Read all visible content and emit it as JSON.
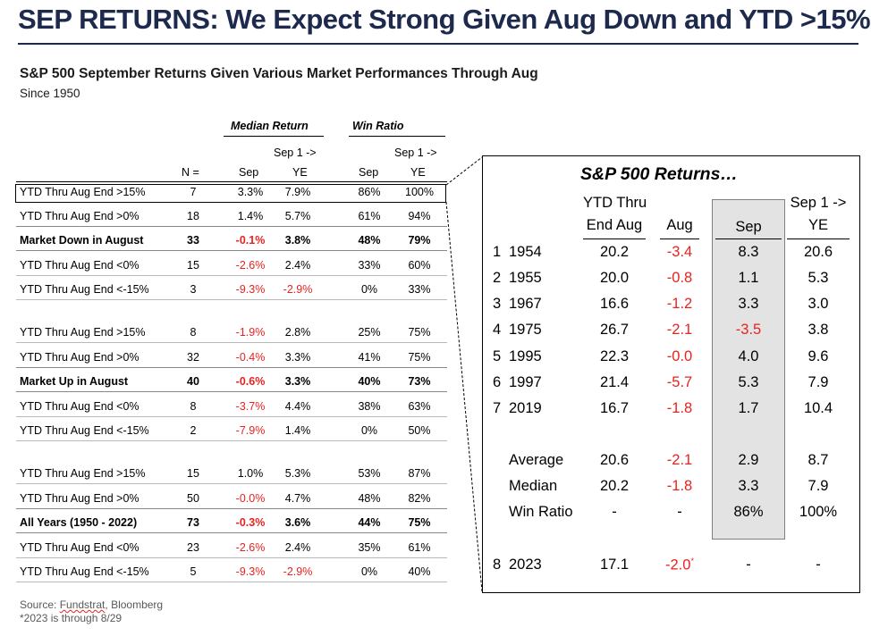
{
  "title": "SEP RETURNS: We Expect Strong Given Aug Down and YTD >15%",
  "subtitle": "S&P 500 September Returns Given Various Market Performances Through Aug",
  "since": "Since 1950",
  "left_table": {
    "group_headers": {
      "median": "Median Return",
      "win": "Win Ratio"
    },
    "col_headers": {
      "n": "N =",
      "sep": "Sep",
      "sep1_top": "Sep 1 ->",
      "ye": "YE"
    },
    "rows": [
      {
        "label": "YTD Thru Aug End >15%",
        "n": "7",
        "med_sep": "3.3%",
        "med_ye": "7.9%",
        "win_sep": "86%",
        "win_ye": "100%"
      },
      {
        "label": "YTD Thru Aug End >0%",
        "n": "18",
        "med_sep": "1.4%",
        "med_ye": "5.7%",
        "win_sep": "61%",
        "win_ye": "94%"
      },
      {
        "label": "Market Down in August",
        "n": "33",
        "med_sep": "-0.1%",
        "med_ye": "3.8%",
        "win_sep": "48%",
        "win_ye": "79%"
      },
      {
        "label": "YTD Thru Aug End <0%",
        "n": "15",
        "med_sep": "-2.6%",
        "med_ye": "2.4%",
        "win_sep": "33%",
        "win_ye": "60%"
      },
      {
        "label": "YTD Thru Aug End <-15%",
        "n": "3",
        "med_sep": "-9.3%",
        "med_ye": "-2.9%",
        "win_sep": "0%",
        "win_ye": "33%"
      },
      {
        "label": "YTD Thru Aug End >15%",
        "n": "8",
        "med_sep": "-1.9%",
        "med_ye": "2.8%",
        "win_sep": "25%",
        "win_ye": "75%"
      },
      {
        "label": "YTD Thru Aug End >0%",
        "n": "32",
        "med_sep": "-0.4%",
        "med_ye": "3.3%",
        "win_sep": "41%",
        "win_ye": "75%"
      },
      {
        "label": "Market Up in August",
        "n": "40",
        "med_sep": "-0.6%",
        "med_ye": "3.3%",
        "win_sep": "40%",
        "win_ye": "73%"
      },
      {
        "label": "YTD Thru Aug End <0%",
        "n": "8",
        "med_sep": "-3.7%",
        "med_ye": "4.4%",
        "win_sep": "38%",
        "win_ye": "63%"
      },
      {
        "label": "YTD Thru Aug End <-15%",
        "n": "2",
        "med_sep": "-7.9%",
        "med_ye": "1.4%",
        "win_sep": "0%",
        "win_ye": "50%"
      },
      {
        "label": "YTD Thru Aug End >15%",
        "n": "15",
        "med_sep": "1.0%",
        "med_ye": "5.3%",
        "win_sep": "53%",
        "win_ye": "87%"
      },
      {
        "label": "YTD Thru Aug End >0%",
        "n": "50",
        "med_sep": "-0.0%",
        "med_ye": "4.7%",
        "win_sep": "48%",
        "win_ye": "82%"
      },
      {
        "label": "All Years (1950 - 2022)",
        "n": "73",
        "med_sep": "-0.3%",
        "med_ye": "3.6%",
        "win_sep": "44%",
        "win_ye": "75%"
      },
      {
        "label": "YTD Thru Aug End <0%",
        "n": "23",
        "med_sep": "-2.6%",
        "med_ye": "2.4%",
        "win_sep": "35%",
        "win_ye": "61%"
      },
      {
        "label": "YTD Thru Aug End <-15%",
        "n": "5",
        "med_sep": "-9.3%",
        "med_ye": "-2.9%",
        "win_sep": "0%",
        "win_ye": "40%"
      }
    ]
  },
  "detail": {
    "title": "S&P 500 Returns…",
    "headers": {
      "ytd_top": "YTD Thru",
      "ytd_bottom": "End Aug",
      "aug": "Aug",
      "sep": "Sep",
      "sep1_top": "Sep 1 ->",
      "ye": "YE"
    },
    "rows": [
      {
        "idx": "1",
        "year": "1954",
        "ytd": "20.2",
        "aug": "-3.4",
        "sep": "8.3",
        "ye": "20.6"
      },
      {
        "idx": "2",
        "year": "1955",
        "ytd": "20.0",
        "aug": "-0.8",
        "sep": "1.1",
        "ye": "5.3"
      },
      {
        "idx": "3",
        "year": "1967",
        "ytd": "16.6",
        "aug": "-1.2",
        "sep": "3.3",
        "ye": "3.0"
      },
      {
        "idx": "4",
        "year": "1975",
        "ytd": "26.7",
        "aug": "-2.1",
        "sep": "-3.5",
        "ye": "3.8"
      },
      {
        "idx": "5",
        "year": "1995",
        "ytd": "22.3",
        "aug": "-0.0",
        "sep": "4.0",
        "ye": "9.6"
      },
      {
        "idx": "6",
        "year": "1997",
        "ytd": "21.4",
        "aug": "-5.7",
        "sep": "5.3",
        "ye": "7.9"
      },
      {
        "idx": "7",
        "year": "2019",
        "ytd": "16.7",
        "aug": "-1.8",
        "sep": "1.7",
        "ye": "10.4"
      }
    ],
    "summary": [
      {
        "label": "Average",
        "ytd": "20.6",
        "aug": "-2.1",
        "sep": "2.9",
        "ye": "8.7"
      },
      {
        "label": "Median",
        "ytd": "20.2",
        "aug": "-1.8",
        "sep": "3.3",
        "ye": "7.9"
      },
      {
        "label": "Win Ratio",
        "ytd": "-",
        "aug": "-",
        "sep": "86%",
        "ye": "100%"
      }
    ],
    "current": {
      "idx": "8",
      "year": "2023",
      "ytd": "17.1",
      "aug": "-2.0",
      "aug_mark": "*",
      "sep": "-",
      "ye": "-"
    }
  },
  "source_label": "Source: ",
  "source_name": "Fundstrat",
  "source_rest": ", Bloomberg",
  "footnote": "*2023 is through 8/29",
  "colors": {
    "title": "#1d2a4d",
    "negative": "#e8221f",
    "sep_shade": "#e3e3e3"
  }
}
